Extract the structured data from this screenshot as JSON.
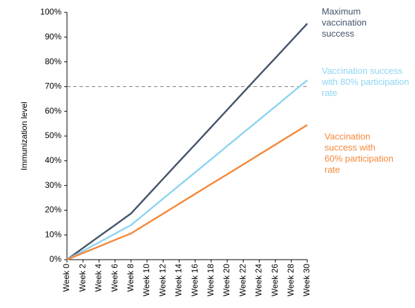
{
  "chart_data": {
    "type": "line",
    "y_label": "Immunization level",
    "categories": [
      "Week 0",
      "Week 2",
      "Week 4",
      "Week 6",
      "Week 8",
      "Week 10",
      "Week 12",
      "Week 14",
      "Week 16",
      "Week 18",
      "Week 20",
      "Week 22",
      "Week 24",
      "Week 26",
      "Week 28",
      "Week 30"
    ],
    "series": [
      {
        "name": "Maximum vaccination success",
        "color": "#44546a",
        "values": [
          0,
          4.7,
          9.4,
          14,
          18.7,
          25.7,
          32.7,
          39.7,
          46.6,
          53.6,
          60.6,
          67.6,
          74.6,
          81.5,
          88.5,
          95.5
        ]
      },
      {
        "name": "Vaccination success with 80% participation rate",
        "color": "#8fd4f2",
        "values": [
          0,
          3.5,
          7,
          10.5,
          14,
          19.3,
          24.7,
          30,
          35.3,
          40.6,
          46,
          51.3,
          56.6,
          61.9,
          67.3,
          72.6
        ]
      },
      {
        "name": "Vaccination success with 60% participation rate",
        "color": "#f4883a",
        "values": [
          0,
          2.7,
          5.3,
          8,
          10.6,
          14.6,
          18.6,
          22.6,
          26.6,
          30.6,
          34.5,
          38.5,
          42.5,
          46.5,
          50.5,
          54.5
        ]
      }
    ],
    "ylim": [
      0,
      100
    ],
    "yticks": [
      {
        "value": 0,
        "label": "0%"
      },
      {
        "value": 10,
        "label": "10%"
      },
      {
        "value": 20,
        "label": "20%"
      },
      {
        "value": 30,
        "label": "30%"
      },
      {
        "value": 40,
        "label": "40%"
      },
      {
        "value": 50,
        "label": "50%"
      },
      {
        "value": 60,
        "label": "60%"
      },
      {
        "value": 70,
        "label": "70%"
      },
      {
        "value": 80,
        "label": "80%"
      },
      {
        "value": 90,
        "label": "90%"
      },
      {
        "value": 100,
        "label": "100%"
      }
    ],
    "hline": 70,
    "grid": false
  }
}
